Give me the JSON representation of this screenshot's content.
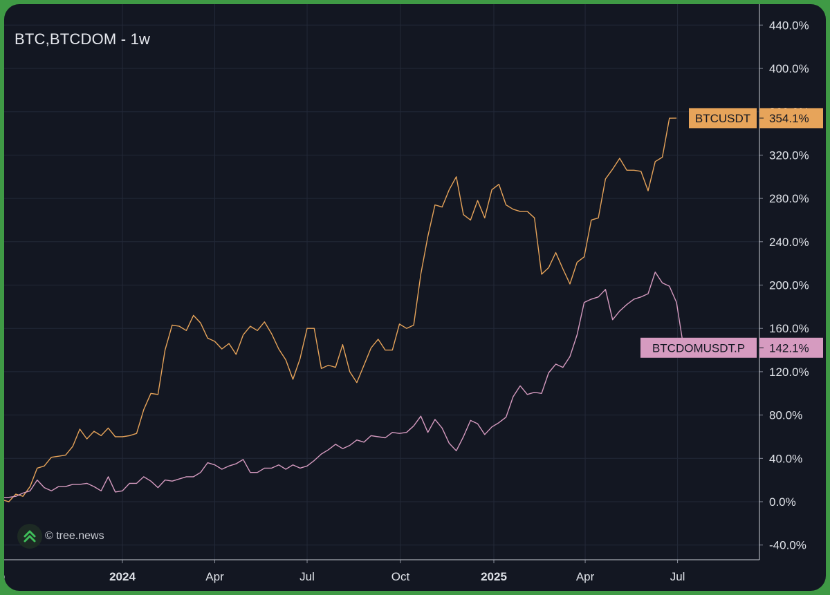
{
  "header": {
    "title": "BTC,BTCDOM - 1w"
  },
  "watermark": {
    "text": "© tree.news",
    "icon": "tree-news-logo-icon"
  },
  "colors": {
    "background": "#131722",
    "frame_border": "#3f9a45",
    "grid": "#232938",
    "axis_text": "#dfe2e8",
    "btc": "#e7a45a",
    "btcdom": "#d69bc0"
  },
  "chart_data": {
    "type": "line",
    "ylabel": "",
    "xlabel": "",
    "ylim": [
      -40,
      460
    ],
    "grid": true,
    "y_ticks": [
      "440.0%",
      "400.0%",
      "360.0%",
      "320.0%",
      "280.0%",
      "240.0%",
      "200.0%",
      "160.0%",
      "120.0%",
      "80.0%",
      "40.0%",
      "0.0%",
      "-40.0%"
    ],
    "y_tick_values": [
      440,
      400,
      360,
      320,
      280,
      240,
      200,
      160,
      120,
      80,
      40,
      0,
      -40
    ],
    "x_ticks": [
      {
        "label": "ep",
        "date": "2023-09-01",
        "bold": false
      },
      {
        "label": "2024",
        "date": "2024-01-01",
        "bold": true
      },
      {
        "label": "Apr",
        "date": "2024-04-01",
        "bold": false
      },
      {
        "label": "Jul",
        "date": "2024-07-01",
        "bold": false
      },
      {
        "label": "Oct",
        "date": "2024-10-01",
        "bold": false
      },
      {
        "label": "2025",
        "date": "2025-01-01",
        "bold": true
      },
      {
        "label": "Apr",
        "date": "2025-04-01",
        "bold": false
      },
      {
        "label": "Jul",
        "date": "2025-07-01",
        "bold": false
      }
    ],
    "series": [
      {
        "name": "BTCUSDT",
        "last_label": "354.1%",
        "color": "#e7a45a",
        "points": [
          [
            "2023-08-28",
            0
          ],
          [
            "2023-09-04",
            2
          ],
          [
            "2023-09-11",
            0
          ],
          [
            "2023-09-18",
            7
          ],
          [
            "2023-09-25",
            5
          ],
          [
            "2023-10-02",
            14
          ],
          [
            "2023-10-09",
            31
          ],
          [
            "2023-10-16",
            33
          ],
          [
            "2023-10-23",
            41
          ],
          [
            "2023-10-30",
            42
          ],
          [
            "2023-11-06",
            43
          ],
          [
            "2023-11-13",
            51
          ],
          [
            "2023-11-20",
            67
          ],
          [
            "2023-11-27",
            58
          ],
          [
            "2023-12-04",
            65
          ],
          [
            "2023-12-11",
            61
          ],
          [
            "2023-12-18",
            68
          ],
          [
            "2023-12-25",
            60
          ],
          [
            "2024-01-01",
            60
          ],
          [
            "2024-01-08",
            61
          ],
          [
            "2024-01-15",
            63
          ],
          [
            "2024-01-22",
            85
          ],
          [
            "2024-01-29",
            100
          ],
          [
            "2024-02-05",
            99
          ],
          [
            "2024-02-12",
            140
          ],
          [
            "2024-02-19",
            163
          ],
          [
            "2024-02-26",
            162
          ],
          [
            "2024-03-04",
            158
          ],
          [
            "2024-03-11",
            172
          ],
          [
            "2024-03-18",
            165
          ],
          [
            "2024-03-25",
            151
          ],
          [
            "2024-04-01",
            148
          ],
          [
            "2024-04-08",
            141
          ],
          [
            "2024-04-15",
            146
          ],
          [
            "2024-04-22",
            136
          ],
          [
            "2024-04-29",
            154
          ],
          [
            "2024-05-06",
            162
          ],
          [
            "2024-05-13",
            158
          ],
          [
            "2024-05-20",
            166
          ],
          [
            "2024-05-27",
            155
          ],
          [
            "2024-06-03",
            141
          ],
          [
            "2024-06-10",
            131
          ],
          [
            "2024-06-17",
            113
          ],
          [
            "2024-06-24",
            132
          ],
          [
            "2024-07-01",
            160
          ],
          [
            "2024-07-08",
            160
          ],
          [
            "2024-07-15",
            123
          ],
          [
            "2024-07-22",
            126
          ],
          [
            "2024-07-29",
            124
          ],
          [
            "2024-08-05",
            145
          ],
          [
            "2024-08-12",
            120
          ],
          [
            "2024-08-19",
            110
          ],
          [
            "2024-08-26",
            126
          ],
          [
            "2024-09-02",
            142
          ],
          [
            "2024-09-09",
            150
          ],
          [
            "2024-09-16",
            140
          ],
          [
            "2024-09-23",
            140
          ],
          [
            "2024-09-30",
            164
          ],
          [
            "2024-10-07",
            160
          ],
          [
            "2024-10-14",
            163
          ],
          [
            "2024-10-21",
            210
          ],
          [
            "2024-10-28",
            245
          ],
          [
            "2024-11-04",
            274
          ],
          [
            "2024-11-11",
            272
          ],
          [
            "2024-11-18",
            288
          ],
          [
            "2024-11-25",
            300
          ],
          [
            "2024-12-02",
            265
          ],
          [
            "2024-12-09",
            260
          ],
          [
            "2024-12-16",
            278
          ],
          [
            "2024-12-23",
            262
          ],
          [
            "2024-12-30",
            288
          ],
          [
            "2025-01-06",
            293
          ],
          [
            "2025-01-13",
            274
          ],
          [
            "2025-01-20",
            270
          ],
          [
            "2025-01-27",
            268
          ],
          [
            "2025-02-03",
            268
          ],
          [
            "2025-02-10",
            262
          ],
          [
            "2025-02-17",
            210
          ],
          [
            "2025-02-24",
            216
          ],
          [
            "2025-03-03",
            230
          ],
          [
            "2025-03-10",
            215
          ],
          [
            "2025-03-17",
            201
          ],
          [
            "2025-03-24",
            221
          ],
          [
            "2025-03-31",
            226
          ],
          [
            "2025-04-07",
            260
          ],
          [
            "2025-04-14",
            262
          ],
          [
            "2025-04-21",
            298
          ],
          [
            "2025-04-28",
            307
          ],
          [
            "2025-05-05",
            317
          ],
          [
            "2025-05-12",
            306
          ],
          [
            "2025-05-19",
            306
          ],
          [
            "2025-05-26",
            305
          ],
          [
            "2025-06-02",
            287
          ],
          [
            "2025-06-09",
            314
          ],
          [
            "2025-06-16",
            318
          ],
          [
            "2025-06-23",
            354
          ],
          [
            "2025-06-30",
            354.1
          ]
        ]
      },
      {
        "name": "BTCDOMUSDT.P",
        "last_label": "142.1%",
        "color": "#d69bc0",
        "points": [
          [
            "2023-08-28",
            2
          ],
          [
            "2023-09-04",
            4
          ],
          [
            "2023-09-11",
            4
          ],
          [
            "2023-09-18",
            5
          ],
          [
            "2023-09-25",
            8
          ],
          [
            "2023-10-02",
            10
          ],
          [
            "2023-10-09",
            20
          ],
          [
            "2023-10-16",
            13
          ],
          [
            "2023-10-23",
            10
          ],
          [
            "2023-10-30",
            14
          ],
          [
            "2023-11-06",
            14
          ],
          [
            "2023-11-13",
            16
          ],
          [
            "2023-11-20",
            16
          ],
          [
            "2023-11-27",
            17
          ],
          [
            "2023-12-04",
            14
          ],
          [
            "2023-12-11",
            10
          ],
          [
            "2023-12-18",
            23
          ],
          [
            "2023-12-25",
            9
          ],
          [
            "2024-01-01",
            10
          ],
          [
            "2024-01-08",
            17
          ],
          [
            "2024-01-15",
            17
          ],
          [
            "2024-01-22",
            23
          ],
          [
            "2024-01-29",
            19
          ],
          [
            "2024-02-05",
            13
          ],
          [
            "2024-02-12",
            20
          ],
          [
            "2024-02-19",
            19
          ],
          [
            "2024-02-26",
            21
          ],
          [
            "2024-03-04",
            23
          ],
          [
            "2024-03-11",
            23
          ],
          [
            "2024-03-18",
            27
          ],
          [
            "2024-03-25",
            36
          ],
          [
            "2024-04-01",
            34
          ],
          [
            "2024-04-08",
            30
          ],
          [
            "2024-04-15",
            33
          ],
          [
            "2024-04-22",
            35
          ],
          [
            "2024-04-29",
            39
          ],
          [
            "2024-05-06",
            27
          ],
          [
            "2024-05-13",
            27
          ],
          [
            "2024-05-20",
            31
          ],
          [
            "2024-05-27",
            31
          ],
          [
            "2024-06-03",
            34
          ],
          [
            "2024-06-10",
            30
          ],
          [
            "2024-06-17",
            34
          ],
          [
            "2024-06-24",
            31
          ],
          [
            "2024-07-01",
            33
          ],
          [
            "2024-07-08",
            38
          ],
          [
            "2024-07-15",
            44
          ],
          [
            "2024-07-22",
            48
          ],
          [
            "2024-07-29",
            53
          ],
          [
            "2024-08-05",
            49
          ],
          [
            "2024-08-12",
            52
          ],
          [
            "2024-08-19",
            57
          ],
          [
            "2024-08-26",
            55
          ],
          [
            "2024-09-02",
            61
          ],
          [
            "2024-09-09",
            60
          ],
          [
            "2024-09-16",
            59
          ],
          [
            "2024-09-23",
            64
          ],
          [
            "2024-09-30",
            63
          ],
          [
            "2024-10-07",
            64
          ],
          [
            "2024-10-14",
            70
          ],
          [
            "2024-10-21",
            79
          ],
          [
            "2024-10-28",
            64
          ],
          [
            "2024-11-04",
            76
          ],
          [
            "2024-11-11",
            68
          ],
          [
            "2024-11-18",
            54
          ],
          [
            "2024-11-25",
            47
          ],
          [
            "2024-12-02",
            60
          ],
          [
            "2024-12-09",
            75
          ],
          [
            "2024-12-16",
            72
          ],
          [
            "2024-12-23",
            62
          ],
          [
            "2024-12-30",
            69
          ],
          [
            "2025-01-06",
            73
          ],
          [
            "2025-01-13",
            78
          ],
          [
            "2025-01-20",
            97
          ],
          [
            "2025-01-27",
            107
          ],
          [
            "2025-02-03",
            99
          ],
          [
            "2025-02-10",
            101
          ],
          [
            "2025-02-17",
            100
          ],
          [
            "2025-02-24",
            119
          ],
          [
            "2025-03-03",
            127
          ],
          [
            "2025-03-10",
            124
          ],
          [
            "2025-03-17",
            134
          ],
          [
            "2025-03-24",
            154
          ],
          [
            "2025-03-31",
            184
          ],
          [
            "2025-04-07",
            187
          ],
          [
            "2025-04-14",
            189
          ],
          [
            "2025-04-21",
            196
          ],
          [
            "2025-04-28",
            168
          ],
          [
            "2025-05-05",
            176
          ],
          [
            "2025-05-12",
            182
          ],
          [
            "2025-05-19",
            187
          ],
          [
            "2025-05-26",
            189
          ],
          [
            "2025-06-02",
            192
          ],
          [
            "2025-06-09",
            212
          ],
          [
            "2025-06-16",
            202
          ],
          [
            "2025-06-23",
            199
          ],
          [
            "2025-06-30",
            184
          ],
          [
            "2025-07-07",
            142.1
          ]
        ]
      }
    ]
  }
}
